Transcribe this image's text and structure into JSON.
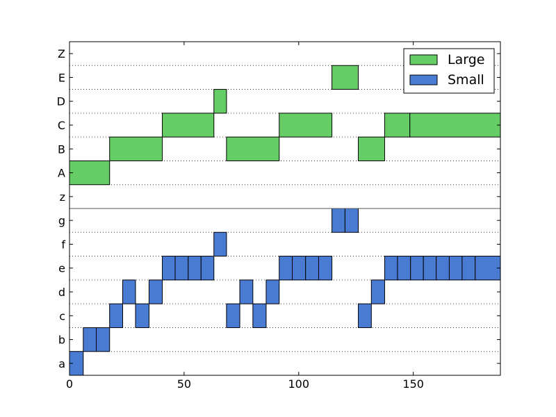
{
  "chart_data": {
    "type": "bar",
    "orientation": "horizontal",
    "stacked_segments": true,
    "x_ticks": [
      0,
      50,
      100,
      150
    ],
    "xlim": [
      0,
      188
    ],
    "y_categories": [
      "a",
      "b",
      "c",
      "d",
      "e",
      "f",
      "g",
      "z",
      "A",
      "B",
      "C",
      "D",
      "E",
      "Z"
    ],
    "grid": {
      "horizontal": true,
      "vertical": false,
      "style": "dotted"
    },
    "legend": {
      "placement": "top-right"
    },
    "separator_value": 6.5,
    "series": [
      {
        "name": "Large",
        "color": "#66cc66",
        "segments": [
          {
            "row": "A",
            "start": 0,
            "end": 17.5
          },
          {
            "row": "B",
            "start": 17.5,
            "end": 40.5
          },
          {
            "row": "C",
            "start": 40.5,
            "end": 63
          },
          {
            "row": "D",
            "start": 63,
            "end": 68.5
          },
          {
            "row": "B",
            "start": 68.5,
            "end": 91.5
          },
          {
            "row": "C",
            "start": 91.5,
            "end": 114.5
          },
          {
            "row": "E",
            "start": 114.5,
            "end": 126
          },
          {
            "row": "B",
            "start": 126,
            "end": 137.5
          },
          {
            "row": "C",
            "start": 137.5,
            "end": 148.5
          },
          {
            "row": "C",
            "start": 148.5,
            "end": 188
          }
        ]
      },
      {
        "name": "Small",
        "color": "#4a7bd3",
        "segments": [
          {
            "row": "a",
            "start": 0,
            "end": 6
          },
          {
            "row": "b",
            "start": 6,
            "end": 11.7
          },
          {
            "row": "b",
            "start": 11.7,
            "end": 17.5
          },
          {
            "row": "c",
            "start": 17.5,
            "end": 23.2
          },
          {
            "row": "d",
            "start": 23.2,
            "end": 28.8
          },
          {
            "row": "c",
            "start": 28.8,
            "end": 34.7
          },
          {
            "row": "d",
            "start": 34.7,
            "end": 40.5
          },
          {
            "row": "e",
            "start": 40.5,
            "end": 46.1
          },
          {
            "row": "e",
            "start": 46.1,
            "end": 51.8
          },
          {
            "row": "e",
            "start": 51.8,
            "end": 57.4
          },
          {
            "row": "e",
            "start": 57.4,
            "end": 63
          },
          {
            "row": "f",
            "start": 63,
            "end": 68.5
          },
          {
            "row": "c",
            "start": 68.5,
            "end": 74.3
          },
          {
            "row": "d",
            "start": 74.3,
            "end": 80
          },
          {
            "row": "c",
            "start": 80,
            "end": 85.8
          },
          {
            "row": "d",
            "start": 85.8,
            "end": 91.5
          },
          {
            "row": "e",
            "start": 91.5,
            "end": 97.2
          },
          {
            "row": "e",
            "start": 97.2,
            "end": 103
          },
          {
            "row": "e",
            "start": 103,
            "end": 108.7
          },
          {
            "row": "e",
            "start": 108.7,
            "end": 114.5
          },
          {
            "row": "g",
            "start": 114.5,
            "end": 120.2
          },
          {
            "row": "g",
            "start": 120.2,
            "end": 126
          },
          {
            "row": "c",
            "start": 126,
            "end": 131.7
          },
          {
            "row": "d",
            "start": 131.7,
            "end": 137.5
          },
          {
            "row": "e",
            "start": 137.5,
            "end": 143.1
          },
          {
            "row": "e",
            "start": 143.1,
            "end": 148.8
          },
          {
            "row": "e",
            "start": 148.8,
            "end": 154.4
          },
          {
            "row": "e",
            "start": 154.4,
            "end": 160
          },
          {
            "row": "e",
            "start": 160,
            "end": 165.7
          },
          {
            "row": "e",
            "start": 165.7,
            "end": 171.3
          },
          {
            "row": "e",
            "start": 171.3,
            "end": 177
          },
          {
            "row": "e",
            "start": 177,
            "end": 188
          }
        ]
      }
    ]
  }
}
